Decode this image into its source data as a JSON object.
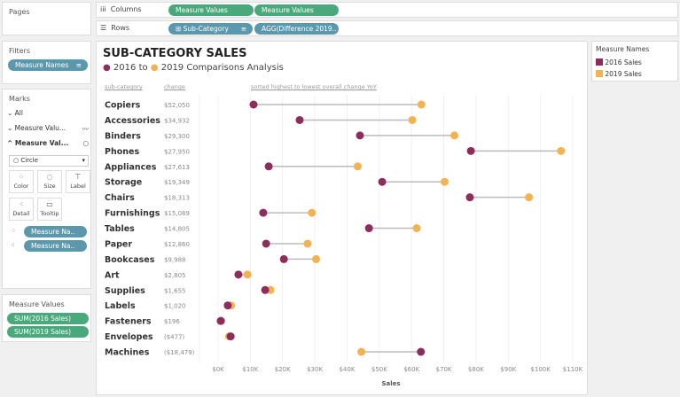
{
  "sidebar": {
    "pages_title": "Pages",
    "filters_title": "Filters",
    "filters": [
      {
        "label": "Measure Names"
      }
    ],
    "marks_title": "Marks",
    "marks_cards": [
      {
        "label": "All"
      },
      {
        "label": "Measure Valu..."
      },
      {
        "label": "Measure Val..."
      }
    ],
    "mark_type": "Circle",
    "mark_buttons": {
      "color": "Color",
      "size": "Size",
      "label": "Label",
      "detail": "Detail",
      "tooltip": "Tooltip"
    },
    "mark_pills": [
      "Measure Na..",
      "Measure Na.."
    ],
    "measure_values_title": "Measure Values",
    "measure_values": [
      "SUM(2016 Sales)",
      "SUM(2019 Sales)"
    ]
  },
  "shelves": {
    "columns_label": "Columns",
    "columns": [
      "Measure Values",
      "Measure Values"
    ],
    "rows_label": "Rows",
    "rows": [
      "Sub-Category",
      "AGG(Difference 2019.."
    ]
  },
  "view": {
    "title": "SUB-CATEGORY SALES",
    "subtitle_a": "2016",
    "subtitle_to": "to",
    "subtitle_b": "2019 Comparisons Analysis",
    "col_subcategory": "sub-category",
    "col_change": "change",
    "sort_note": "sorted highest to lowest overall change YoY"
  },
  "legend": {
    "title": "Measure Names",
    "items": [
      {
        "label": "2016 Sales",
        "color": "#8e2c5c"
      },
      {
        "label": "2019 Sales",
        "color": "#f4b350"
      }
    ]
  },
  "chart_data": {
    "type": "dumbbell",
    "xlabel": "Sales",
    "xlim": [
      0,
      110000
    ],
    "xticks": [
      "$0K",
      "$10K",
      "$20K",
      "$30K",
      "$40K",
      "$50K",
      "$60K",
      "$70K",
      "$80K",
      "$90K",
      "$100K",
      "$110K"
    ],
    "categories": [
      "Copiers",
      "Accessories",
      "Binders",
      "Phones",
      "Appliances",
      "Storage",
      "Chairs",
      "Furnishings",
      "Tables",
      "Paper",
      "Bookcases",
      "Art",
      "Supplies",
      "Labels",
      "Fasteners",
      "Envelopes",
      "Machines"
    ],
    "change": [
      "$52,050",
      "$34,932",
      "$29,300",
      "$27,950",
      "$27,613",
      "$19,349",
      "$18,313",
      "$15,089",
      "$14,805",
      "$12,860",
      "$9,988",
      "$2,805",
      "$1,655",
      "$1,020",
      "$196",
      "($477)",
      "($18,479)"
    ],
    "series": [
      {
        "name": "2016 Sales",
        "color": "#8e2c5c",
        "values": [
          11000,
          25300,
          44000,
          78400,
          15700,
          50900,
          78100,
          14000,
          46800,
          14900,
          20400,
          6300,
          14600,
          3000,
          800,
          3900,
          62900
        ]
      },
      {
        "name": "2019 Sales",
        "color": "#f4b350",
        "values": [
          63050,
          60232,
          73300,
          106350,
          43313,
          70249,
          96413,
          29089,
          61605,
          27760,
          30388,
          9105,
          16255,
          4020,
          996,
          3423,
          44421
        ]
      }
    ],
    "grid": true
  }
}
